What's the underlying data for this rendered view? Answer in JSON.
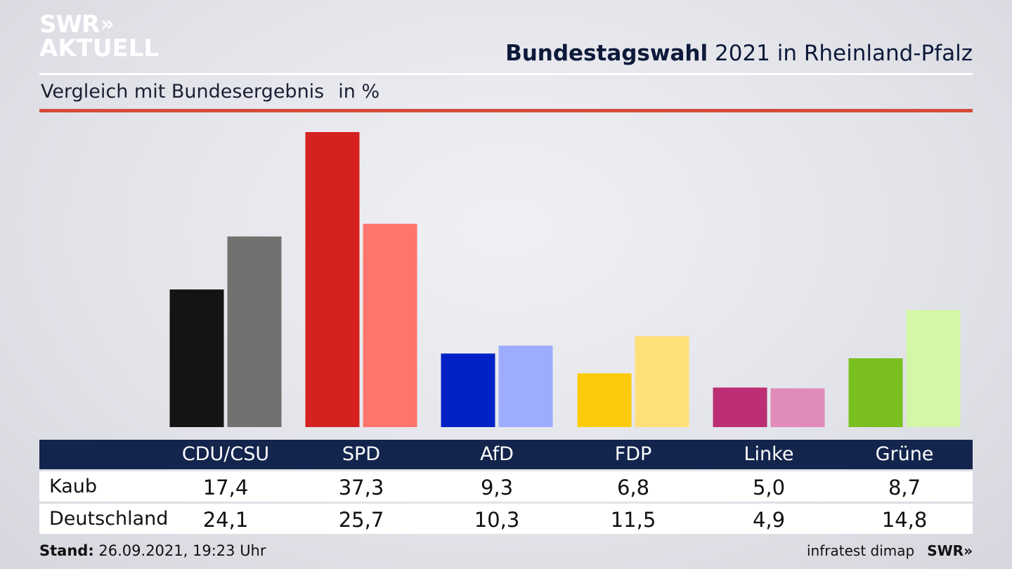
{
  "logo": {
    "line1": "SWR",
    "chevrons": "»",
    "line2": "AKTUELL"
  },
  "header": {
    "title_bold": "Bundestagswahl",
    "title_rest": "2021 in Rheinland-Pfalz",
    "subtitle": "Vergleich mit Bundesergebnis",
    "unit": "in %"
  },
  "chart_data": {
    "type": "bar",
    "categories": [
      "CDU/CSU",
      "SPD",
      "AfD",
      "FDP",
      "Linke",
      "Grüne"
    ],
    "series": [
      {
        "name": "Kaub",
        "values": [
          "17,4",
          "37,3",
          "9,3",
          "6,8",
          "5,0",
          "8,7"
        ],
        "colors": [
          "#141414",
          "#d52120",
          "#0022c6",
          "#fccb0c",
          "#bc2e73",
          "#78bf1f"
        ]
      },
      {
        "name": "Deutschland",
        "values": [
          "24,1",
          "25,7",
          "10,3",
          "11,5",
          "4,9",
          "14,8"
        ],
        "colors": [
          "#73716f",
          "#ff756e",
          "#9eacfe",
          "#fee078",
          "#e08bb9",
          "#d4f6a8"
        ]
      }
    ],
    "ylim": [
      0,
      40
    ]
  },
  "footer": {
    "stand_label": "Stand:",
    "stand_value": "26.09.2021, 19:23 Uhr",
    "source": "infratest dimap",
    "brand": "SWR»"
  }
}
